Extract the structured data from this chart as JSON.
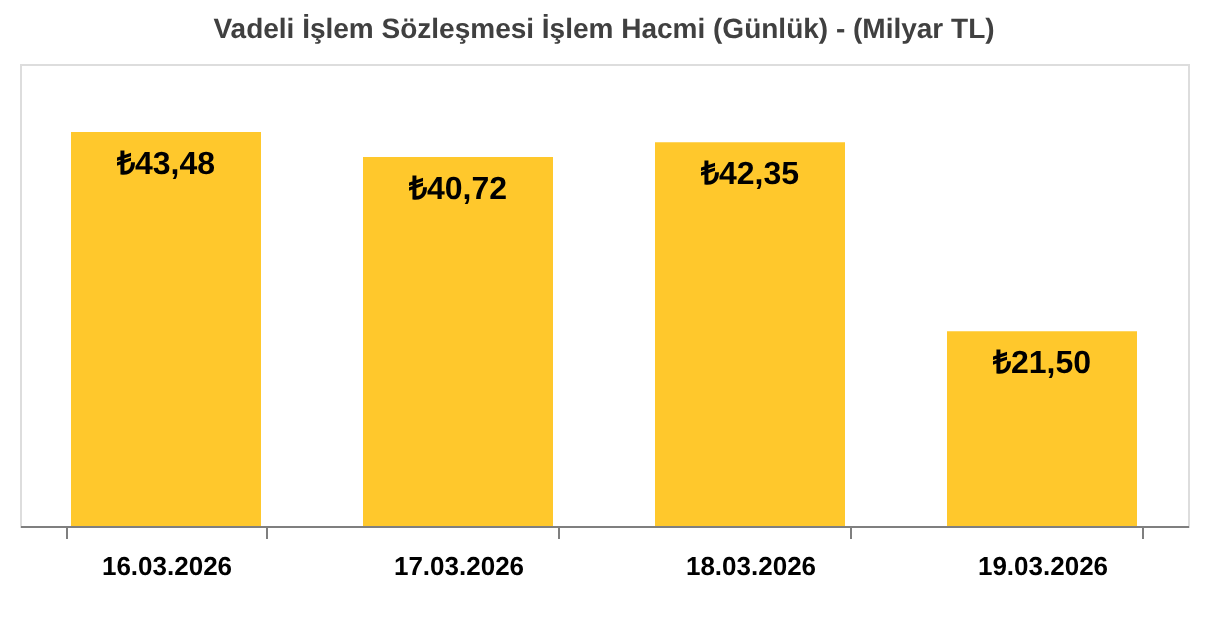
{
  "chart_data": {
    "type": "bar",
    "title": "Vadeli İşlem Sözleşmesi İşlem Hacmi (Günlük) - (Milyar TL)",
    "categories": [
      "16.03.2026",
      "17.03.2026",
      "18.03.2026",
      "19.03.2026"
    ],
    "values": [
      43.48,
      40.72,
      42.35,
      21.5
    ],
    "value_labels": [
      "₺43,48",
      "₺40,72",
      "₺42,35",
      "₺21,50"
    ],
    "color": "#ffc82c",
    "ylim": [
      0,
      51
    ],
    "tick_labels": "x",
    "grid": false
  }
}
